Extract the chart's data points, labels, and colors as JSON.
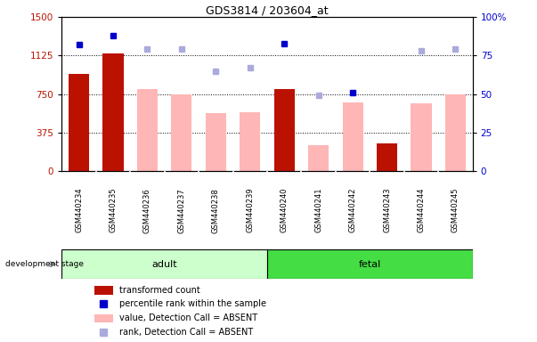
{
  "title": "GDS3814 / 203604_at",
  "categories": [
    "GSM440234",
    "GSM440235",
    "GSM440236",
    "GSM440237",
    "GSM440238",
    "GSM440239",
    "GSM440240",
    "GSM440241",
    "GSM440242",
    "GSM440243",
    "GSM440244",
    "GSM440245"
  ],
  "groups": [
    "adult",
    "adult",
    "adult",
    "adult",
    "adult",
    "adult",
    "fetal",
    "fetal",
    "fetal",
    "fetal",
    "fetal",
    "fetal"
  ],
  "transformed_count": [
    950,
    1150,
    null,
    null,
    null,
    null,
    800,
    null,
    null,
    270,
    null,
    null
  ],
  "percentile_rank": [
    82,
    88,
    null,
    null,
    null,
    null,
    83,
    null,
    51,
    null,
    null,
    null
  ],
  "absent_value": [
    null,
    null,
    800,
    750,
    560,
    570,
    null,
    250,
    670,
    null,
    660,
    750
  ],
  "absent_rank": [
    null,
    null,
    79,
    79,
    65,
    67,
    null,
    49,
    null,
    null,
    78,
    79
  ],
  "ylim_left": [
    0,
    1500
  ],
  "ylim_right": [
    0,
    100
  ],
  "yticks_left": [
    0,
    375,
    750,
    1125,
    1500
  ],
  "yticks_right": [
    0,
    25,
    50,
    75,
    100
  ],
  "bar_color_present": "#bb1100",
  "bar_color_absent": "#ffb6b6",
  "dot_color_present": "#0000cc",
  "dot_color_absent": "#aaaadd",
  "adult_color": "#ccffcc",
  "fetal_color": "#44dd44",
  "cat_box_color": "#d0d0d0",
  "legend_items": [
    {
      "label": "transformed count",
      "color": "#bb1100",
      "type": "bar"
    },
    {
      "label": "percentile rank within the sample",
      "color": "#0000cc",
      "type": "dot"
    },
    {
      "label": "value, Detection Call = ABSENT",
      "color": "#ffb6b6",
      "type": "bar"
    },
    {
      "label": "rank, Detection Call = ABSENT",
      "color": "#aaaadd",
      "type": "dot"
    }
  ]
}
